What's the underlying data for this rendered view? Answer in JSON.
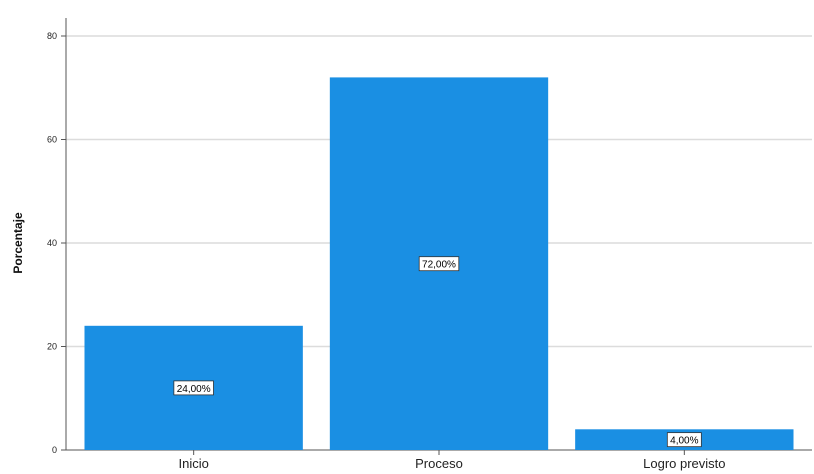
{
  "chart_data": {
    "type": "bar",
    "title": "",
    "xlabel": "",
    "ylabel": "Porcentaje",
    "ylim": [
      0,
      80
    ],
    "yticks": [
      0,
      20,
      40,
      60,
      80
    ],
    "grid": true,
    "categories": [
      "Inicio",
      "Proceso",
      "Logro previsto"
    ],
    "values": [
      24,
      72,
      4
    ],
    "data_labels": [
      "24,00%",
      "72,00%",
      "4,00%"
    ],
    "bar_color": "#1a8fe3"
  }
}
